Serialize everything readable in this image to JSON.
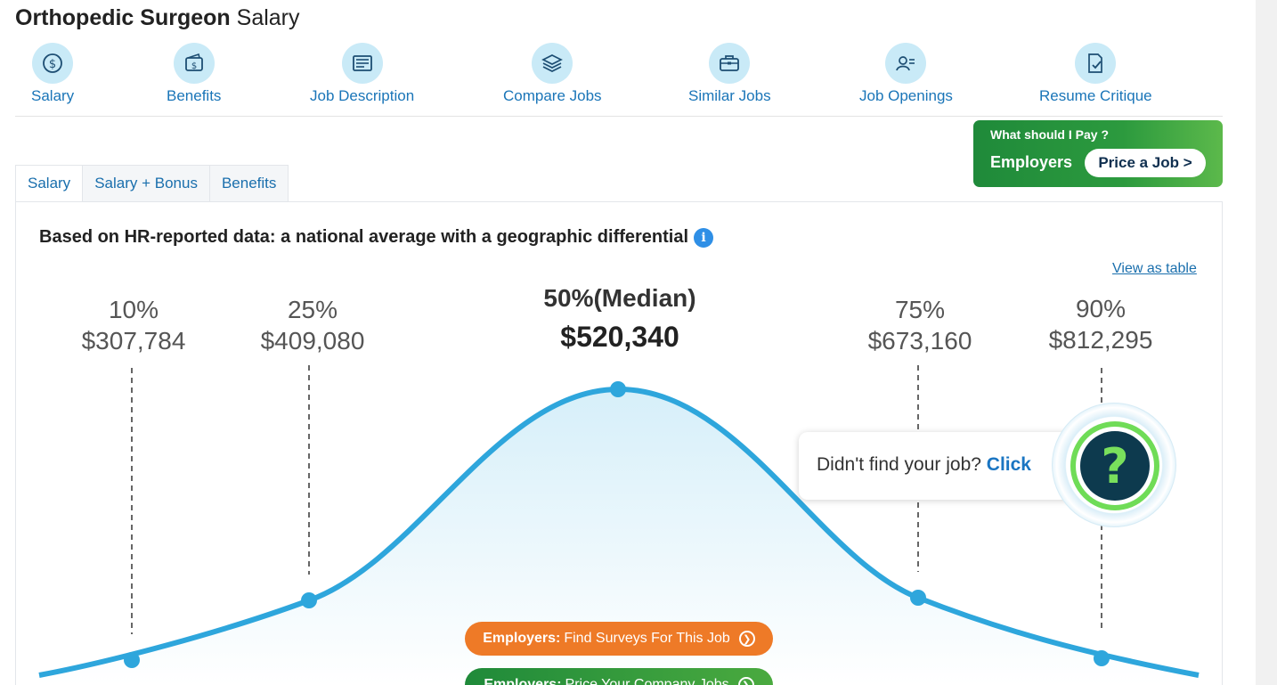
{
  "page": {
    "title_job": "Orthopedic Surgeon",
    "title_rest": "Salary"
  },
  "nav": [
    {
      "label": "Salary",
      "icon": "dollar-coin-icon"
    },
    {
      "label": "Benefits",
      "icon": "wallet-icon"
    },
    {
      "label": "Job Description",
      "icon": "document-icon"
    },
    {
      "label": "Compare Jobs",
      "icon": "stack-layers-icon"
    },
    {
      "label": "Similar Jobs",
      "icon": "briefcase-icon"
    },
    {
      "label": "Job Openings",
      "icon": "person-card-icon"
    },
    {
      "label": "Resume Critique",
      "icon": "document-check-icon"
    }
  ],
  "employer_card": {
    "question": "What should I Pay ?",
    "label": "Employers",
    "button": "Price a Job >"
  },
  "tabs": [
    {
      "label": "Salary",
      "active": true
    },
    {
      "label": "Salary + Bonus",
      "active": false
    },
    {
      "label": "Benefits",
      "active": false
    }
  ],
  "panel": {
    "heading": "Based on HR-reported data: a national average with a geographic differential",
    "info_icon": "i",
    "view_table": "View as table"
  },
  "percentiles": [
    {
      "label": "10%",
      "value": "$307,784"
    },
    {
      "label": "25%",
      "value": "$409,080"
    },
    {
      "label": "50%(Median)",
      "value": "$520,340"
    },
    {
      "label": "75%",
      "value": "$673,160"
    },
    {
      "label": "90%",
      "value": "$812,295"
    }
  ],
  "help": {
    "text": "Didn't find your job?",
    "link": "Click",
    "badge": "?"
  },
  "cta": [
    {
      "bold": "Employers:",
      "text": "Find Surveys For This Job",
      "color": "#ee7a27"
    },
    {
      "bold": "Employers:",
      "text": "Price Your Company Jobs",
      "color": "#1f8a3a"
    }
  ],
  "colors": {
    "curve": "#2ea6dc",
    "link": "#1a6fad",
    "nav_icon_bg": "#c9eaf7"
  }
}
